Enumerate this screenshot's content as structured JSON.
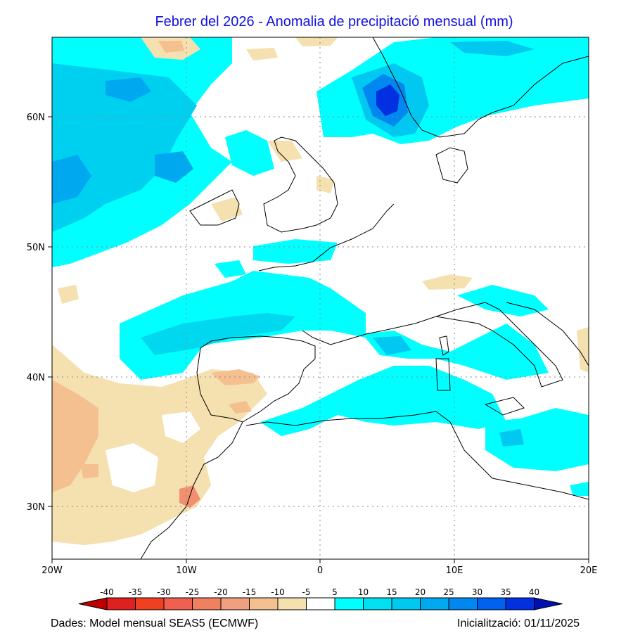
{
  "title": "Febrer del 2026 - Anomalia de precipitació mensual (mm)",
  "axes": {
    "lat_labels": [
      "60N",
      "50N",
      "40N",
      "30N"
    ],
    "lon_labels": [
      "20W",
      "10W",
      "0",
      "10E",
      "20E"
    ]
  },
  "legend": {
    "labels": [
      "-40",
      "-35",
      "-30",
      "-25",
      "-20",
      "-15",
      "-10",
      "-5",
      "5",
      "10",
      "15",
      "20",
      "25",
      "30",
      "35",
      "40"
    ],
    "colors": [
      "#c00000",
      "#e02020",
      "#f04020",
      "#f06050",
      "#f08060",
      "#f0a080",
      "#f5c090",
      "#f5e0b0",
      "#ffffff",
      "#00ffff",
      "#00e0f0",
      "#00c8f0",
      "#00a8f0",
      "#0088f0",
      "#0060f0",
      "#0030e0",
      "#0010b0"
    ]
  },
  "footer": {
    "source": "Dades: Model mensual SEAS5 (ECMWF)",
    "init": "Inicialització: 01/11/2025"
  }
}
